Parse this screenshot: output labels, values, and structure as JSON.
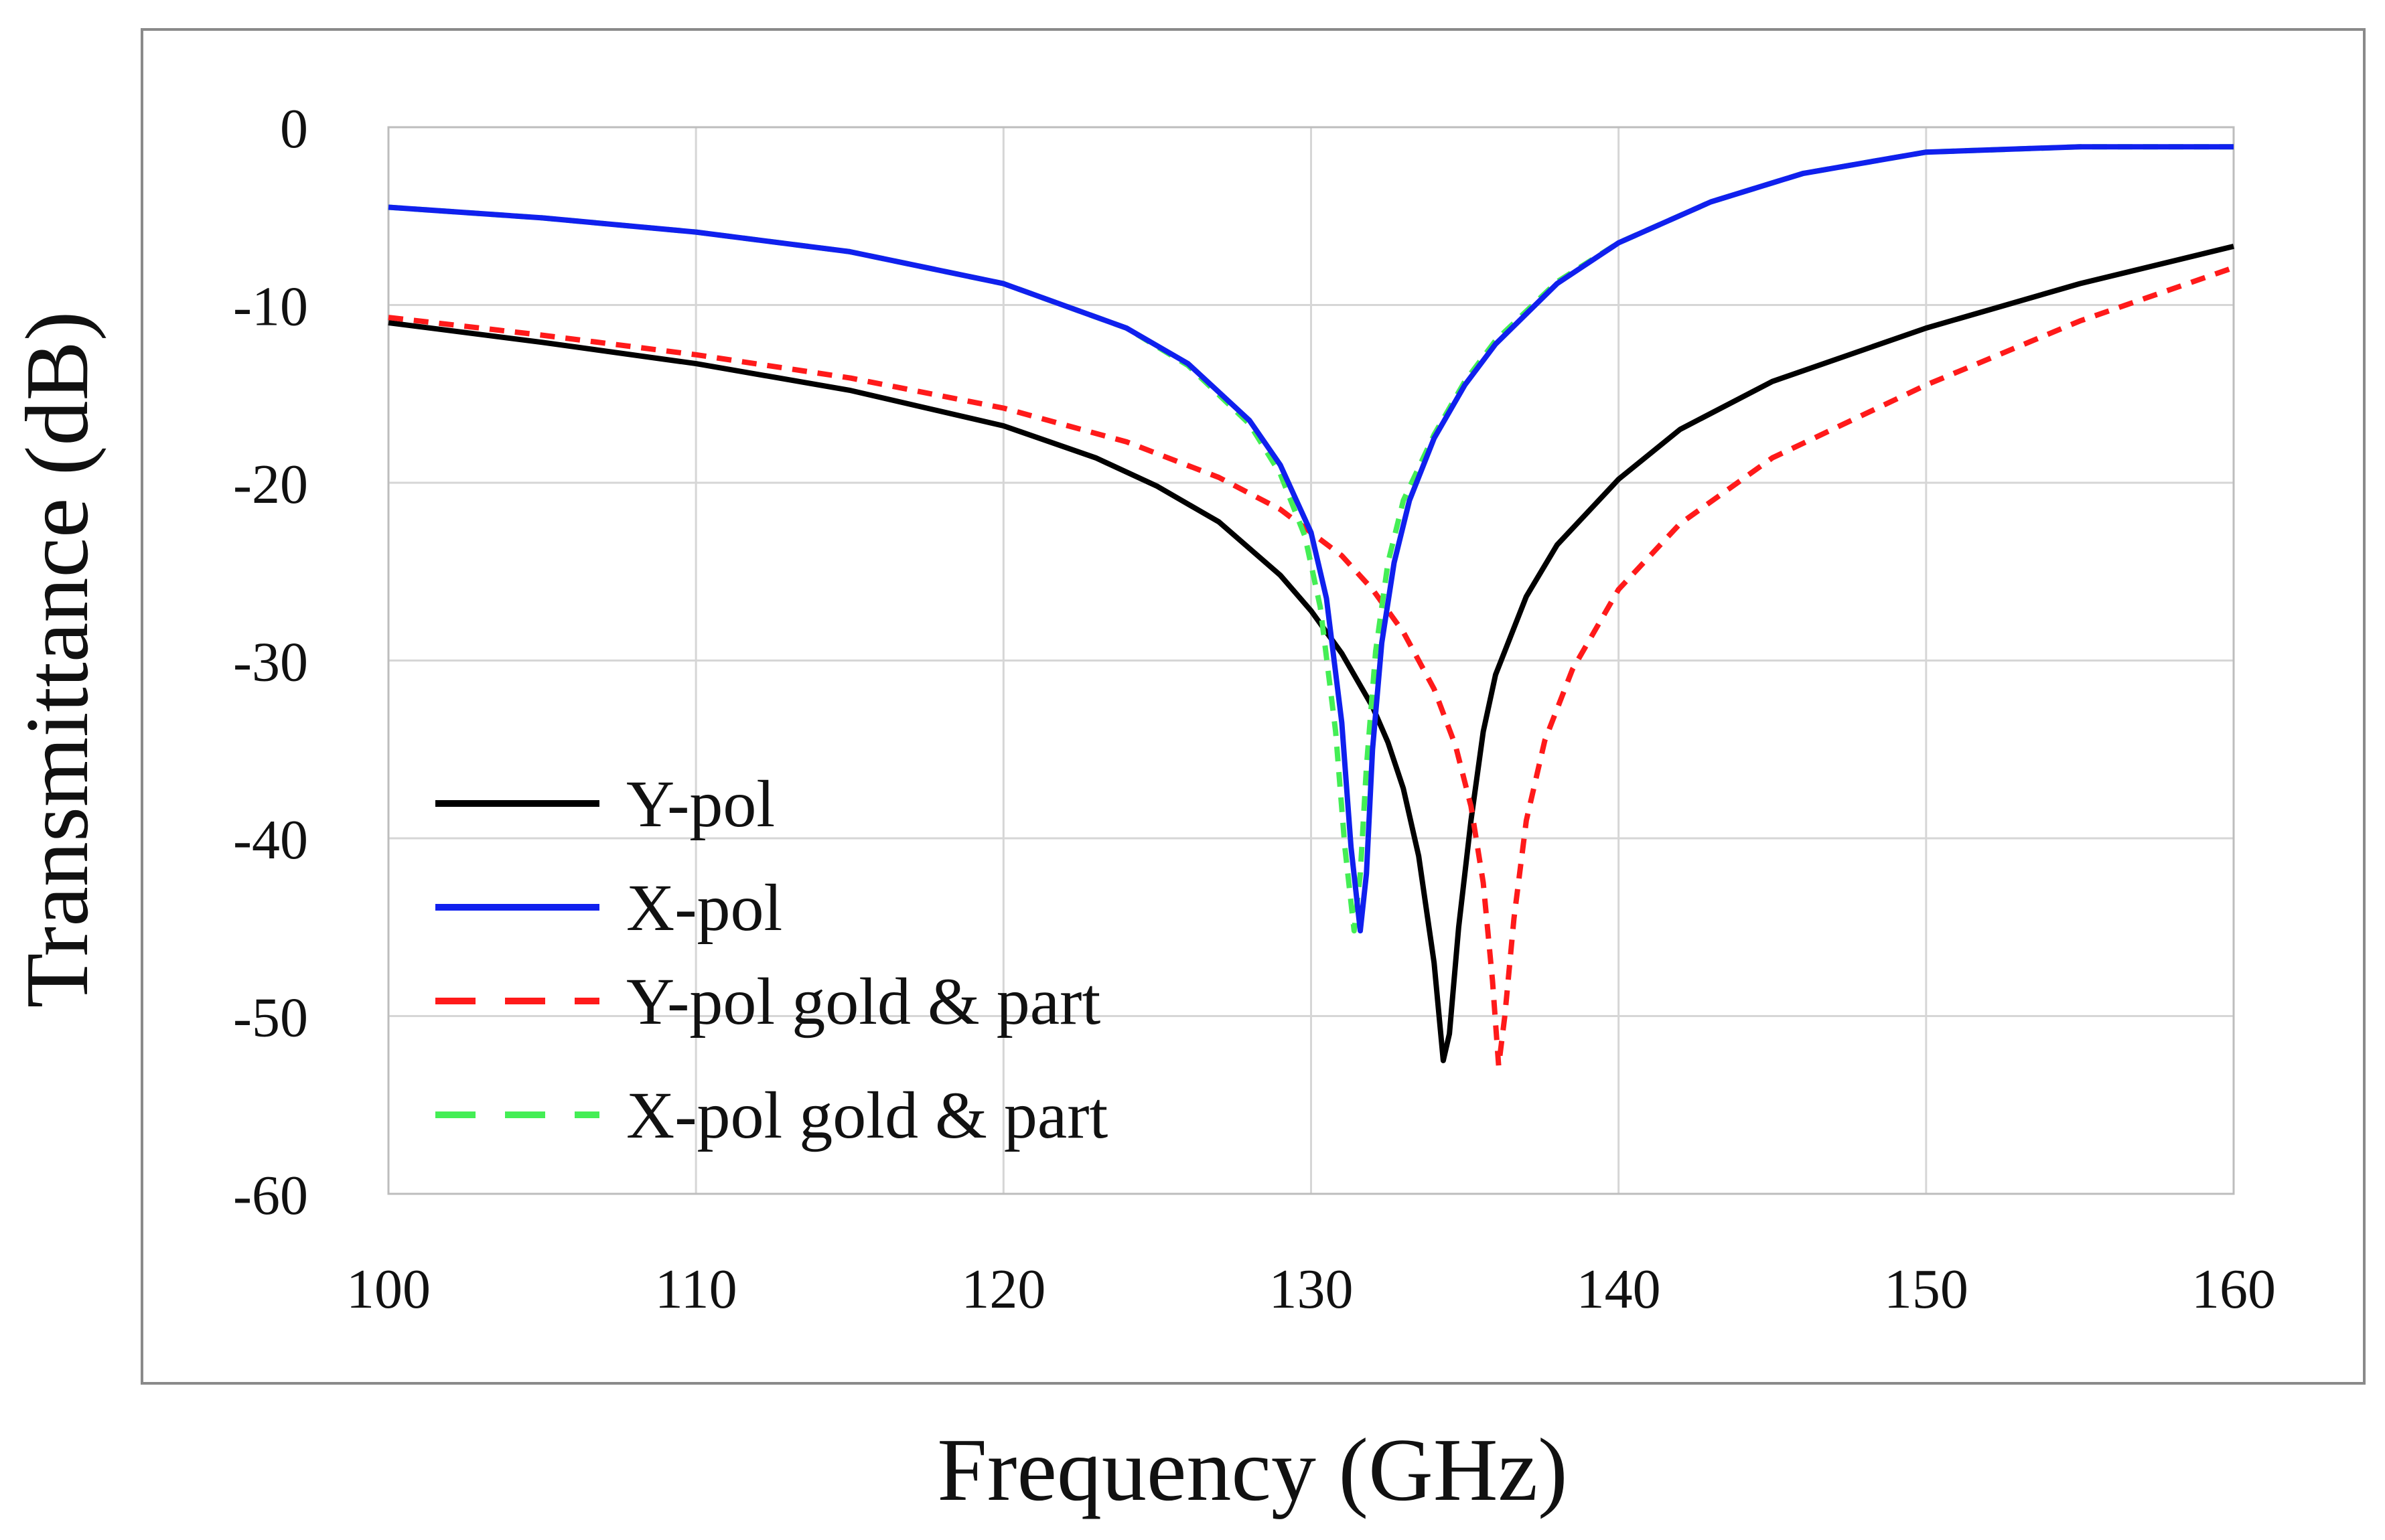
{
  "chart_data": {
    "type": "line",
    "title": "",
    "xlabel": "Frequency (GHz)",
    "ylabel": "Transmittance (dB)",
    "xlim": [
      100,
      160
    ],
    "ylim": [
      -60,
      0
    ],
    "xticks": [
      100,
      110,
      120,
      130,
      140,
      150,
      160
    ],
    "yticks": [
      0,
      -10,
      -20,
      -30,
      -40,
      -50,
      -60
    ],
    "x_tick_labels": [
      "100",
      "110",
      "120",
      "130",
      "140",
      "150",
      "160"
    ],
    "y_tick_labels": [
      "0",
      "-10",
      "-20",
      "-30",
      "-40",
      "-50",
      "-60"
    ],
    "grid": true,
    "legend_position": "bottom-left",
    "series": [
      {
        "name": "Y-pol",
        "color": "#000000",
        "dash": "solid",
        "x": [
          100,
          105,
          110,
          115,
          120,
          123,
          125,
          127,
          129,
          130,
          131,
          132,
          132.5,
          133,
          133.5,
          134,
          134.3,
          134.5,
          134.8,
          135.2,
          135.6,
          136,
          137,
          138,
          140,
          142,
          145,
          150,
          155,
          160
        ],
        "y": [
          -11,
          -12.1,
          -13.3,
          -14.8,
          -16.8,
          -18.6,
          -20.2,
          -22.2,
          -25.2,
          -27.2,
          -29.6,
          -32.6,
          -34.6,
          -37.2,
          -41,
          -47,
          -52.5,
          -51,
          -45,
          -39,
          -34,
          -30.8,
          -26.4,
          -23.5,
          -19.8,
          -17,
          -14.3,
          -11.3,
          -8.8,
          -6.7
        ]
      },
      {
        "name": "X-pol",
        "color": "#1020ee",
        "dash": "solid",
        "x": [
          100,
          105,
          110,
          115,
          120,
          124,
          126,
          128,
          129,
          130,
          130.5,
          131,
          131.3,
          131.6,
          131.8,
          132,
          132.3,
          132.7,
          133.2,
          134,
          135,
          136,
          138,
          140,
          143,
          146,
          150,
          155,
          160
        ],
        "y": [
          -4.5,
          -5.1,
          -5.9,
          -7,
          -8.8,
          -11.3,
          -13.3,
          -16.5,
          -19,
          -22.8,
          -26.5,
          -33.5,
          -40.5,
          -45.2,
          -42,
          -35,
          -29,
          -24.5,
          -21,
          -17.5,
          -14.5,
          -12.2,
          -8.8,
          -6.5,
          -4.2,
          -2.6,
          -1.4,
          -1.1,
          -1.1
        ]
      },
      {
        "name": "Y-pol gold & part",
        "color": "#ff1a1a",
        "dash": "dashed",
        "x": [
          100,
          105,
          110,
          115,
          120,
          124,
          127,
          129,
          131,
          132,
          133,
          134,
          134.7,
          135.2,
          135.6,
          135.9,
          136.1,
          136.3,
          136.6,
          137,
          137.6,
          138.5,
          140,
          142,
          145,
          150,
          155,
          160
        ],
        "y": [
          -10.7,
          -11.7,
          -12.8,
          -14.1,
          -15.8,
          -17.7,
          -19.7,
          -21.5,
          -24.1,
          -26,
          -28.4,
          -31.6,
          -34.8,
          -38.2,
          -42.5,
          -48,
          -52.8,
          -50,
          -44.5,
          -39,
          -34.5,
          -30.5,
          -26,
          -22.3,
          -18.6,
          -14.5,
          -10.9,
          -7.9
        ]
      },
      {
        "name": "X-pol gold & part",
        "color": "#44ee55",
        "dash": "dashed",
        "x": [
          100,
          105,
          110,
          115,
          120,
          124,
          126,
          128,
          129,
          129.8,
          130.3,
          130.8,
          131.1,
          131.4,
          131.6,
          131.8,
          132.1,
          132.5,
          133,
          134,
          135,
          136,
          138,
          140,
          143,
          146,
          150,
          155,
          160
        ],
        "y": [
          -4.5,
          -5.1,
          -5.9,
          -7,
          -8.8,
          -11.3,
          -13.4,
          -16.7,
          -19.5,
          -23,
          -27,
          -34,
          -40.5,
          -45.2,
          -42,
          -36,
          -29.5,
          -24.5,
          -21,
          -17.3,
          -14.3,
          -12,
          -8.7,
          -6.5,
          -4.2,
          -2.6,
          -1.4,
          -1.1,
          -1.1
        ]
      }
    ]
  }
}
